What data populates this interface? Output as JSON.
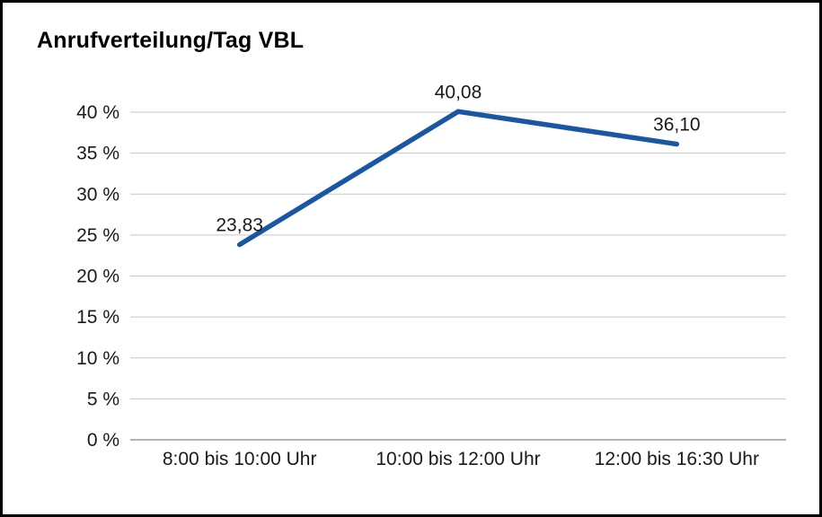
{
  "chart_data": {
    "type": "line",
    "title": "Anrufverteilung/Tag VBL",
    "categories": [
      "8:00 bis 10:00 Uhr",
      "10:00 bis 12:00 Uhr",
      "12:00 bis 16:30 Uhr"
    ],
    "values": [
      23.83,
      40.08,
      36.1
    ],
    "value_labels": [
      "23,83",
      "40,08",
      "36,10"
    ],
    "ylim": [
      0,
      40
    ],
    "y_ticks": [
      0,
      5,
      10,
      15,
      20,
      25,
      30,
      35,
      40
    ],
    "y_tick_labels": [
      "0 %",
      "5 %",
      "10 %",
      "15 %",
      "20 %",
      "25 %",
      "30 %",
      "35 %",
      "40 %"
    ],
    "grid": true,
    "legend": "none",
    "colors": {
      "line": "#1a57a3",
      "grid": "#c6c6c6",
      "axis": "#9a9a9a",
      "text": "#1a1a1a"
    }
  }
}
